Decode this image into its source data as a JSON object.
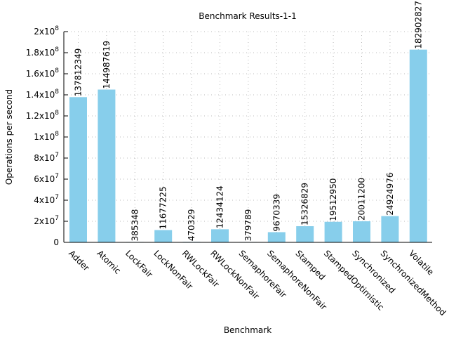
{
  "chart_data": {
    "type": "bar",
    "title": "Benchmark Results-1-1",
    "xlabel": "Benchmark",
    "ylabel": "Operations per second",
    "ylim": [
      0,
      200000000
    ],
    "yticks": [
      {
        "value": 0,
        "label": "0",
        "exp": ""
      },
      {
        "value": 20000000,
        "label": "2x10",
        "exp": "7"
      },
      {
        "value": 40000000,
        "label": "4x10",
        "exp": "7"
      },
      {
        "value": 60000000,
        "label": "6x10",
        "exp": "7"
      },
      {
        "value": 80000000,
        "label": "8x10",
        "exp": "7"
      },
      {
        "value": 100000000,
        "label": "1x10",
        "exp": "8"
      },
      {
        "value": 120000000,
        "label": "1.2x10",
        "exp": "8"
      },
      {
        "value": 140000000,
        "label": "1.4x10",
        "exp": "8"
      },
      {
        "value": 160000000,
        "label": "1.6x10",
        "exp": "8"
      },
      {
        "value": 180000000,
        "label": "1.8x10",
        "exp": "8"
      },
      {
        "value": 200000000,
        "label": "2x10",
        "exp": "8"
      }
    ],
    "grid": true,
    "bar_color": "#87ceeb",
    "categories": [
      "Adder",
      "Atomic",
      "LockFair",
      "LockNonFair",
      "RWLockFair",
      "RWLockNonFair",
      "SemaphoreFair",
      "SemaphoreNonFair",
      "Stamped",
      "StampedOptimistic",
      "Synchronized",
      "SynchronizedMethod",
      "Volatile"
    ],
    "values": [
      137812349,
      144987619,
      385348,
      11677225,
      470329,
      12434124,
      379789,
      9670339,
      15326829,
      19512950,
      20011200,
      24924976,
      182902827
    ]
  }
}
